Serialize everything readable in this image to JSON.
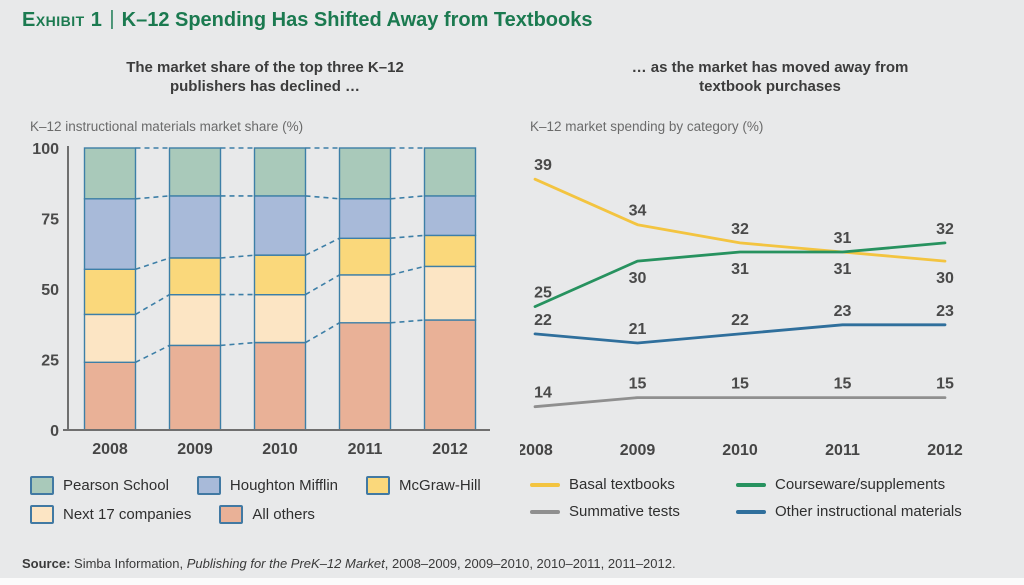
{
  "title": {
    "exhibit": "Exhibit 1",
    "separator": "|",
    "text": "K–12 Spending Has Shifted Away from Textbooks"
  },
  "colors": {
    "background": "#e8e9ea",
    "title_green": "#1b7a50",
    "bar_border_blue": "#3d7fa7",
    "axis_gray": "#6f6f6f",
    "label_gray": "#4a4a4a"
  },
  "chart_data": [
    {
      "type": "bar",
      "stacked": true,
      "title": "The market share of the top three K–12 publishers has declined …",
      "ylabel": "K–12 instructional materials market share (%)",
      "categories": [
        "2008",
        "2009",
        "2010",
        "2011",
        "2012"
      ],
      "series": [
        {
          "name": "All others",
          "color": "#e9b197",
          "values": [
            24,
            30,
            31,
            38,
            39
          ]
        },
        {
          "name": "Next 17 companies",
          "color": "#fce5c4",
          "values": [
            17,
            18,
            17,
            17,
            19
          ]
        },
        {
          "name": "McGraw-Hill",
          "color": "#fad87b",
          "values": [
            16,
            13,
            14,
            13,
            11
          ]
        },
        {
          "name": "Houghton Mifflin",
          "color": "#a8bad9",
          "values": [
            25,
            22,
            21,
            14,
            14
          ]
        },
        {
          "name": "Pearson School",
          "color": "#a9c9ba",
          "values": [
            18,
            17,
            17,
            18,
            17
          ]
        }
      ],
      "ylim": [
        0,
        100
      ],
      "yticks": [
        0,
        25,
        50,
        75,
        100
      ],
      "grid": false,
      "connectors": "dashed-between-bars",
      "legend_position": "below",
      "legend_rows": [
        [
          "Pearson School",
          "Houghton Mifflin",
          "McGraw-Hill"
        ],
        [
          "Next 17 companies",
          "All others"
        ]
      ]
    },
    {
      "type": "line",
      "title": "… as the market has moved away from textbook purchases",
      "ylabel": "K–12 market spending by category (%)",
      "x": [
        "2008",
        "2009",
        "2010",
        "2011",
        "2012"
      ],
      "series": [
        {
          "name": "Basal textbooks",
          "color": "#f3c440",
          "values": [
            39,
            34,
            32,
            31,
            30
          ],
          "label_sides": [
            "above",
            "above",
            "above",
            "below",
            "below"
          ]
        },
        {
          "name": "Courseware/supplements",
          "color": "#27925f",
          "values": [
            25,
            30,
            31,
            31,
            32
          ],
          "label_sides": [
            "above",
            "below",
            "below",
            "above",
            "above"
          ]
        },
        {
          "name": "Summative tests",
          "color": "#8f8f8f",
          "values": [
            14,
            15,
            15,
            15,
            15
          ],
          "label_sides": [
            "above",
            "above",
            "above",
            "above",
            "above"
          ]
        },
        {
          "name": "Other instructional materials",
          "color": "#2f6f9c",
          "values": [
            22,
            21,
            22,
            23,
            23
          ],
          "label_sides": [
            "above",
            "above",
            "above",
            "above",
            "above"
          ]
        }
      ],
      "data_labels": true,
      "grid": false,
      "legend_position": "below",
      "legend_rows": [
        [
          "Basal textbooks",
          "Courseware/supplements"
        ],
        [
          "Summative tests",
          "Other instructional materials"
        ]
      ]
    }
  ],
  "source": {
    "label": "Source:",
    "text_before": " Simba Information, ",
    "italic_title": "Publishing for the PreK–12 Market",
    "text_after": ", 2008–2009, 2009–2010, 2010–2011, 2011–2012."
  }
}
